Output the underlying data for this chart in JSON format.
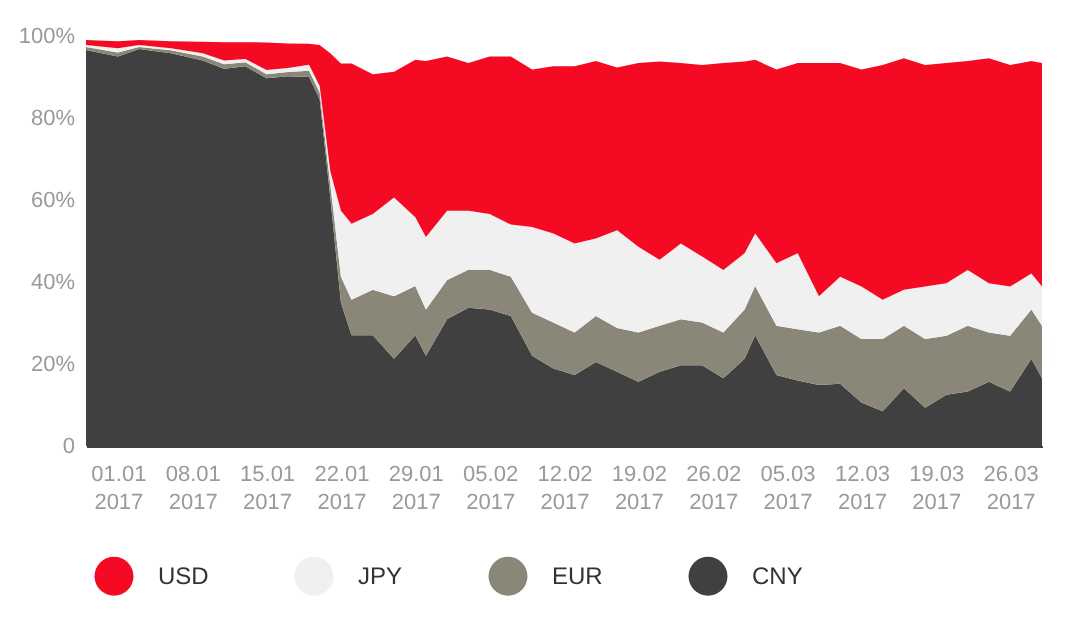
{
  "chart_data": {
    "type": "area",
    "stacked": true,
    "x": [
      "2016-12-29",
      "2017-01-01",
      "2017-01-03",
      "2017-01-06",
      "2017-01-09",
      "2017-01-11",
      "2017-01-13",
      "2017-01-15",
      "2017-01-17",
      "2017-01-19",
      "2017-01-20",
      "2017-01-21",
      "2017-01-22",
      "2017-01-23",
      "2017-01-25",
      "2017-01-27",
      "2017-01-29",
      "2017-01-30",
      "2017-02-01",
      "2017-02-03",
      "2017-02-05",
      "2017-02-07",
      "2017-02-09",
      "2017-02-11",
      "2017-02-13",
      "2017-02-15",
      "2017-02-17",
      "2017-02-19",
      "2017-02-21",
      "2017-02-23",
      "2017-02-25",
      "2017-02-27",
      "2017-03-01",
      "2017-03-02",
      "2017-03-04",
      "2017-03-06",
      "2017-03-08",
      "2017-03-10",
      "2017-03-12",
      "2017-03-14",
      "2017-03-16",
      "2017-03-18",
      "2017-03-20",
      "2017-03-22",
      "2017-03-24",
      "2017-03-26",
      "2017-03-28",
      "2017-03-29"
    ],
    "series": [
      {
        "name": "CNY",
        "color": "#404040",
        "values": [
          96.6,
          95,
          96.8,
          95.8,
          94,
          92,
          92.6,
          89.7,
          90.2,
          90,
          84.6,
          60.6,
          35,
          27,
          27,
          21.3,
          27,
          22,
          31,
          33.7,
          33.3,
          31.7,
          22,
          18.9,
          17.3,
          20.5,
          18.1,
          15.7,
          18.1,
          19.7,
          19.7,
          16.5,
          21.3,
          27,
          17.3,
          16,
          14.9,
          15.2,
          10.6,
          8.5,
          14.1,
          9.3,
          12.5,
          13.3,
          15.7,
          13.3,
          21.3,
          16.5
        ]
      },
      {
        "name": "EUR",
        "color": "#8a8778",
        "values": [
          0.7,
          1,
          0.5,
          0.7,
          1,
          1.1,
          1,
          1,
          1,
          1.5,
          1.6,
          3.2,
          6.3,
          8.7,
          11.1,
          15.2,
          12,
          11.3,
          9.5,
          9.3,
          9.7,
          9.6,
          10.5,
          11.2,
          10.4,
          11.2,
          10.7,
          12,
          11.2,
          11.2,
          10.4,
          11.2,
          12,
          12,
          12,
          12.5,
          12.8,
          14.1,
          15.5,
          17.6,
          15.2,
          16.8,
          14.4,
          16,
          12,
          13.6,
          12,
          12.8
        ]
      },
      {
        "name": "JPY",
        "color": "#f0f0f0",
        "values": [
          0.5,
          1,
          0.5,
          0.5,
          0.8,
          0.9,
          0.8,
          1,
          1,
          1.5,
          1.6,
          3.2,
          16.1,
          18.5,
          18.5,
          24.1,
          16.8,
          17.7,
          16.9,
          14.4,
          13.6,
          12.7,
          20.9,
          21.7,
          21.7,
          18.9,
          23.8,
          20.9,
          16.1,
          18.5,
          16.1,
          15.2,
          13.7,
          12.8,
          15.3,
          18.5,
          8.8,
          12,
          12.8,
          9.6,
          8.8,
          12.8,
          12.8,
          13.6,
          12,
          12,
          8.8,
          9.6
        ]
      },
      {
        "name": "USD",
        "color": "#f50a23",
        "values": [
          1.2,
          1.7,
          1.2,
          1.7,
          2.8,
          4.5,
          4.1,
          6.7,
          6,
          5.1,
          10,
          28.8,
          35.9,
          39.1,
          34.1,
          30.7,
          38.4,
          42.9,
          37.6,
          36,
          38.4,
          41,
          38.4,
          40.8,
          43.2,
          43.3,
          39.7,
          44.8,
          48.4,
          44,
          46.7,
          50.5,
          46.8,
          42.4,
          47.2,
          46.4,
          56.9,
          52.1,
          52.9,
          57.2,
          56.5,
          54,
          53.7,
          51,
          54.9,
          54,
          51.8,
          54.5
        ]
      }
    ],
    "xlim": [
      "2016-12-29",
      "2017-03-29"
    ],
    "xticks": [
      {
        "value": "2017-01-01",
        "label": "01.01 2017"
      },
      {
        "value": "2017-01-08",
        "label": "08.01 2017"
      },
      {
        "value": "2017-01-15",
        "label": "15.01 2017"
      },
      {
        "value": "2017-01-22",
        "label": "22.01 2017"
      },
      {
        "value": "2017-01-29",
        "label": "29.01 2017"
      },
      {
        "value": "2017-02-05",
        "label": "05.02 2017"
      },
      {
        "value": "2017-02-12",
        "label": "12.02 2017"
      },
      {
        "value": "2017-02-19",
        "label": "19.02 2017"
      },
      {
        "value": "2017-02-26",
        "label": "26.02 2017"
      },
      {
        "value": "2017-03-05",
        "label": "05.03 2017"
      },
      {
        "value": "2017-03-12",
        "label": "12.03 2017"
      },
      {
        "value": "2017-03-19",
        "label": "19.03 2017"
      },
      {
        "value": "2017-03-26",
        "label": "26.03 2017"
      }
    ],
    "ylim": [
      0,
      100
    ],
    "yticks": [
      {
        "value": 0,
        "label": "0"
      },
      {
        "value": 20,
        "label": "20%"
      },
      {
        "value": 40,
        "label": "40%"
      },
      {
        "value": 60,
        "label": "60%"
      },
      {
        "value": 80,
        "label": "80%"
      },
      {
        "value": 100,
        "label": "100%"
      }
    ],
    "grid": false,
    "legend": "bottom"
  }
}
